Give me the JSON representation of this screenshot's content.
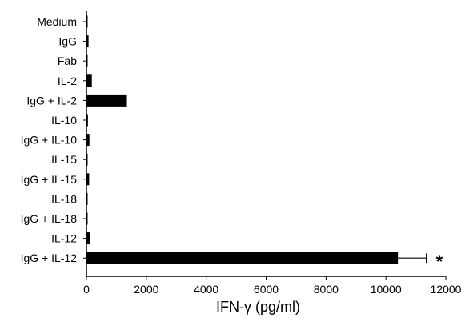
{
  "chart_data": {
    "type": "bar",
    "orientation": "horizontal",
    "categories": [
      "Medium",
      "IgG",
      "Fab",
      "IL-2",
      "IgG + IL-2",
      "IL-10",
      "IgG + IL-10",
      "IL-15",
      "IgG + IL-15",
      "IL-18",
      "IgG + IL-18",
      "IL-12",
      "IgG + IL-12"
    ],
    "values": [
      20,
      70,
      30,
      180,
      1350,
      50,
      100,
      20,
      90,
      30,
      40,
      110,
      10400
    ],
    "error_upper": [
      null,
      null,
      null,
      null,
      null,
      null,
      null,
      null,
      null,
      null,
      null,
      null,
      11350
    ],
    "xlabel": "IFN-γ (pg/ml)",
    "ylabel": "",
    "title": "",
    "xlim": [
      0,
      12000
    ],
    "xticks": [
      "0",
      "2000",
      "4000",
      "6000",
      "8000",
      "10000",
      "12000"
    ],
    "annotations": [
      {
        "category": "IgG + IL-12",
        "text": "*"
      }
    ],
    "grid": false,
    "bar_color": "#000000"
  }
}
